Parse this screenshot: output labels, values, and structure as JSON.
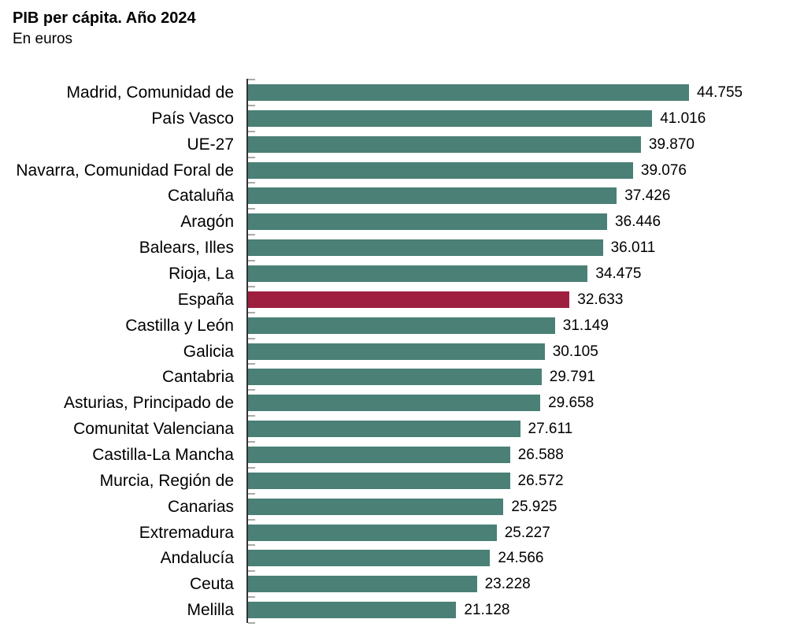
{
  "header": {
    "title": "PIB per cápita. Año 2024",
    "subtitle": "En euros"
  },
  "chart_data": {
    "type": "bar",
    "orientation": "horizontal",
    "title": "PIB per cápita. Año 2024",
    "subtitle": "En euros",
    "unit": "euros",
    "xlabel": "",
    "ylabel": "",
    "xlim": [
      0,
      44755
    ],
    "grid": false,
    "legend": false,
    "bar_color": "#4a8076",
    "highlight_color": "#9e1f3f",
    "axis_color": "#333333",
    "tick_color": "#aaaaaa",
    "highlight_category": "España",
    "categories": [
      "Madrid, Comunidad de",
      "País Vasco",
      "UE-27",
      "Navarra, Comunidad Foral de",
      "Cataluña",
      "Aragón",
      "Balears, Illes",
      "Rioja, La",
      "España",
      "Castilla y León",
      "Galicia",
      "Cantabria",
      "Asturias, Principado de",
      "Comunitat Valenciana",
      "Castilla-La Mancha",
      "Murcia, Región de",
      "Canarias",
      "Extremadura",
      "Andalucía",
      "Ceuta",
      "Melilla"
    ],
    "values": [
      44755,
      41016,
      39870,
      39076,
      37426,
      36446,
      36011,
      34475,
      32633,
      31149,
      30105,
      29791,
      29658,
      27611,
      26588,
      26572,
      25925,
      25227,
      24566,
      23228,
      21128
    ],
    "value_labels": [
      "44.755",
      "41.016",
      "39.870",
      "39.076",
      "37.426",
      "36.446",
      "36.011",
      "34.475",
      "32.633",
      "31.149",
      "30.105",
      "29.791",
      "29.658",
      "27.611",
      "26.588",
      "26.572",
      "25.925",
      "25.227",
      "24.566",
      "23.228",
      "21.128"
    ]
  }
}
